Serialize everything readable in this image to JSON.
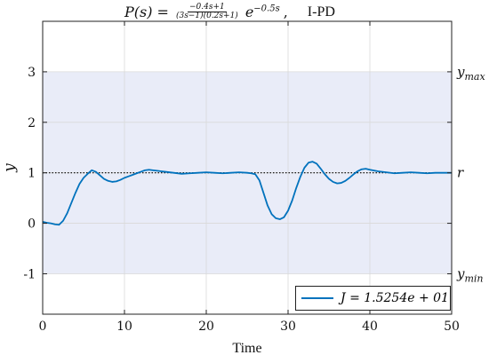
{
  "title": {
    "lhs": "P(s) =",
    "num": "−0.4s+1",
    "den": "(3s−1)(0.2s+1)",
    "exp_base": "e",
    "exp_power": "−0.5s",
    "sep": ",",
    "method": "I-PD"
  },
  "right_labels": {
    "ymax": "ymax",
    "r": "r",
    "ymin": "ymin"
  },
  "legend": {
    "label": "J = 1.5254e + 01"
  },
  "colors": {
    "line": "#0072bd",
    "band": "#e9ecf8",
    "grid": "#d9d9d9",
    "reference": "#000000"
  },
  "chart_data": {
    "type": "line",
    "xlabel": "Time",
    "ylabel": "y",
    "xlim": [
      0,
      50
    ],
    "ylim": [
      -1.8,
      4
    ],
    "xticks": [
      0,
      10,
      20,
      30,
      40,
      50
    ],
    "yticks": [
      -1,
      0,
      1,
      2,
      3
    ],
    "ytick_labels": [
      "-1",
      "0",
      "1",
      "2",
      "3"
    ],
    "grid": true,
    "legend_position": "bottom-right",
    "band": {
      "ymin": -1,
      "ymax": 3
    },
    "reference": 1,
    "series": [
      {
        "name": "J = 1.5254e + 01",
        "x": [
          0,
          0.5,
          1,
          1.5,
          2,
          2.5,
          3,
          3.5,
          4,
          4.5,
          5,
          5.5,
          6,
          6.5,
          7,
          7.5,
          8,
          8.5,
          9,
          9.5,
          10,
          10.5,
          11,
          11.5,
          12,
          12.5,
          13,
          13.5,
          14,
          14.5,
          15,
          16,
          17,
          18,
          19,
          20,
          21,
          22,
          23,
          24,
          25,
          25.5,
          26,
          26.5,
          27,
          27.5,
          28,
          28.5,
          29,
          29.5,
          30,
          30.5,
          31,
          31.5,
          32,
          32.5,
          33,
          33.5,
          34,
          34.5,
          35,
          35.5,
          36,
          36.5,
          37,
          37.5,
          38,
          38.5,
          39,
          39.5,
          40,
          41,
          42,
          43,
          44,
          45,
          46,
          47,
          48,
          49,
          50
        ],
        "y": [
          0.03,
          0.01,
          0.0,
          -0.02,
          -0.03,
          0.05,
          0.2,
          0.4,
          0.6,
          0.78,
          0.9,
          0.98,
          1.05,
          1.02,
          0.95,
          0.88,
          0.84,
          0.82,
          0.83,
          0.86,
          0.9,
          0.93,
          0.96,
          0.99,
          1.02,
          1.05,
          1.06,
          1.05,
          1.04,
          1.03,
          1.02,
          1.0,
          0.98,
          0.99,
          1.0,
          1.01,
          1.0,
          0.99,
          1.0,
          1.01,
          1.0,
          0.99,
          0.97,
          0.85,
          0.6,
          0.35,
          0.18,
          0.1,
          0.08,
          0.12,
          0.25,
          0.45,
          0.7,
          0.92,
          1.1,
          1.2,
          1.22,
          1.18,
          1.08,
          0.97,
          0.88,
          0.82,
          0.79,
          0.8,
          0.84,
          0.9,
          0.97,
          1.03,
          1.07,
          1.08,
          1.06,
          1.03,
          1.01,
          0.99,
          1.0,
          1.01,
          1.0,
          0.99,
          1.0,
          1.0,
          1.0
        ]
      }
    ]
  }
}
